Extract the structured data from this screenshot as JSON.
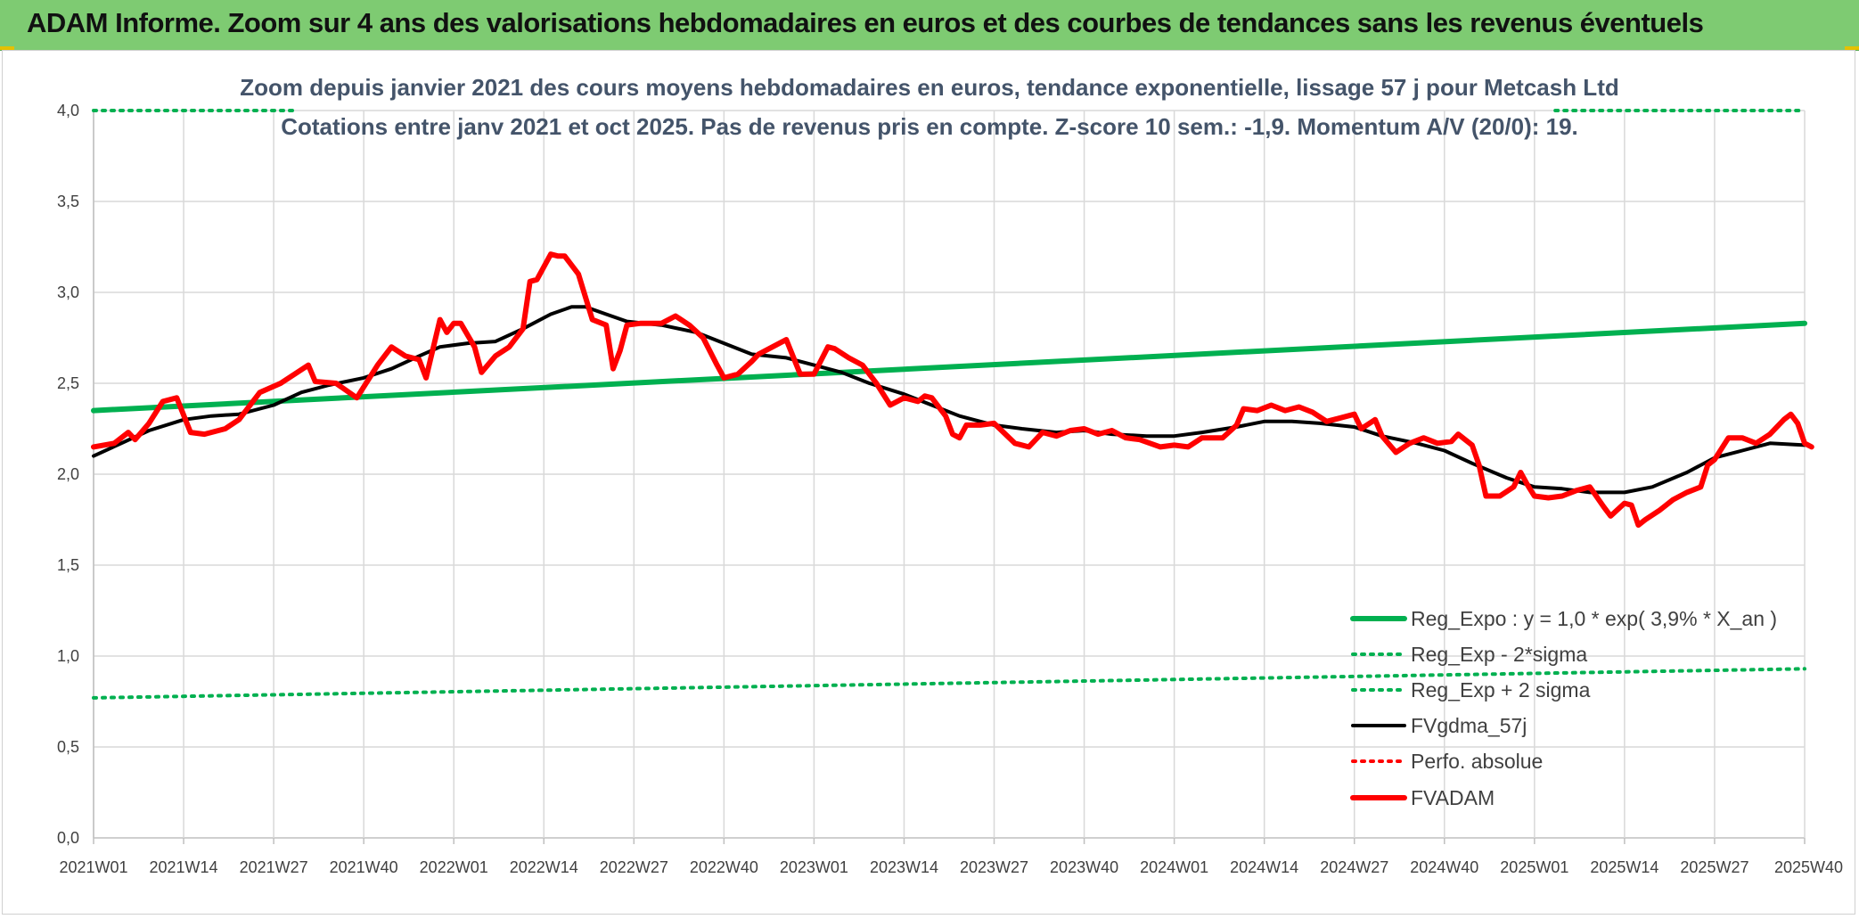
{
  "header": {
    "title": "ADAM Informe. Zoom sur 4 ans des valorisations hebdomadaires en euros et des courbes de tendances sans les revenus éventuels"
  },
  "colors": {
    "banner": "#7ecb72",
    "green": "#00b050",
    "red": "#ff0000",
    "black": "#000000",
    "grid": "#d9d9d9",
    "text": "#44546a"
  },
  "chart_data": {
    "type": "line",
    "title": "Zoom depuis janvier 2021 des cours moyens hebdomadaires en euros, tendance exponentielle, lissage 57 j pour Metcash Ltd",
    "subtitle": "Cotations entre janv 2021 et oct 2025. Pas de revenus pris en compte. Z-score 10 sem.: -1,9. Momentum A/V (20/0): 19.",
    "xlabel": "",
    "ylabel": "",
    "ylim": [
      0,
      4
    ],
    "y_ticks": [
      "0,0",
      "0,5",
      "1,0",
      "1,5",
      "2,0",
      "2,5",
      "3,0",
      "3,5",
      "4,0"
    ],
    "x_ticks": [
      "2021W01",
      "2021W14",
      "2021W27",
      "2021W40",
      "2022W01",
      "2022W14",
      "2022W27",
      "2022W40",
      "2023W01",
      "2023W14",
      "2023W27",
      "2023W40",
      "2024W01",
      "2024W14",
      "2024W27",
      "2024W40",
      "2025W01",
      "2025W14",
      "2025W27",
      "2025W40"
    ],
    "x_tick_weeks": [
      0,
      13,
      26,
      39,
      52,
      65,
      78,
      91,
      104,
      117,
      130,
      143,
      156,
      169,
      182,
      195,
      208,
      221,
      234,
      247
    ],
    "grid": true,
    "legend_position": "bottom-right",
    "series": [
      {
        "name": "Reg_Expo : y = 1,0 * exp( 3,9% *  X_an )",
        "style": "solid-thick",
        "color": "#00b050",
        "points": [
          [
            0,
            2.35
          ],
          [
            247,
            2.83
          ]
        ]
      },
      {
        "name": "Reg_Exp - 2*sigma",
        "style": "dotted",
        "color": "#00b050",
        "points": [
          [
            0,
            0.77
          ],
          [
            247,
            0.93
          ]
        ]
      },
      {
        "name": "Reg_Exp + 2 sigma",
        "style": "dotted",
        "color": "#00b050",
        "points": [
          [
            0,
            4.0
          ],
          [
            29,
            4.0
          ],
          [
            211,
            4.0
          ],
          [
            247,
            4.0
          ]
        ],
        "segments": [
          [
            0,
            29
          ],
          [
            211,
            247
          ]
        ]
      },
      {
        "name": "FVgdma_57j",
        "style": "solid",
        "color": "#000000",
        "points": [
          [
            0,
            2.1
          ],
          [
            4,
            2.17
          ],
          [
            8,
            2.24
          ],
          [
            13,
            2.3
          ],
          [
            17,
            2.32
          ],
          [
            21,
            2.33
          ],
          [
            26,
            2.38
          ],
          [
            30,
            2.45
          ],
          [
            34,
            2.49
          ],
          [
            39,
            2.53
          ],
          [
            43,
            2.58
          ],
          [
            47,
            2.65
          ],
          [
            50,
            2.7
          ],
          [
            54,
            2.72
          ],
          [
            58,
            2.73
          ],
          [
            62,
            2.8
          ],
          [
            66,
            2.88
          ],
          [
            69,
            2.92
          ],
          [
            71,
            2.92
          ],
          [
            74,
            2.88
          ],
          [
            77,
            2.84
          ],
          [
            82,
            2.82
          ],
          [
            87,
            2.78
          ],
          [
            91,
            2.72
          ],
          [
            95,
            2.66
          ],
          [
            100,
            2.64
          ],
          [
            104,
            2.6
          ],
          [
            108,
            2.56
          ],
          [
            112,
            2.5
          ],
          [
            117,
            2.44
          ],
          [
            121,
            2.38
          ],
          [
            125,
            2.32
          ],
          [
            130,
            2.27
          ],
          [
            134,
            2.25
          ],
          [
            139,
            2.23
          ],
          [
            143,
            2.24
          ],
          [
            147,
            2.22
          ],
          [
            152,
            2.21
          ],
          [
            156,
            2.21
          ],
          [
            160,
            2.23
          ],
          [
            165,
            2.26
          ],
          [
            169,
            2.29
          ],
          [
            173,
            2.29
          ],
          [
            177,
            2.28
          ],
          [
            182,
            2.26
          ],
          [
            186,
            2.21
          ],
          [
            191,
            2.17
          ],
          [
            195,
            2.13
          ],
          [
            199,
            2.06
          ],
          [
            204,
            1.98
          ],
          [
            208,
            1.93
          ],
          [
            212,
            1.92
          ],
          [
            216,
            1.9
          ],
          [
            221,
            1.9
          ],
          [
            225,
            1.93
          ],
          [
            230,
            2.01
          ],
          [
            234,
            2.09
          ],
          [
            238,
            2.13
          ],
          [
            242,
            2.17
          ],
          [
            247,
            2.16
          ]
        ]
      },
      {
        "name": "Perfo. absolue",
        "style": "dotted",
        "color": "#ff0000",
        "points": []
      },
      {
        "name": "FVADAM",
        "style": "solid-thick",
        "color": "#ff0000",
        "points": [
          [
            0,
            2.15
          ],
          [
            3,
            2.17
          ],
          [
            5,
            2.23
          ],
          [
            6,
            2.19
          ],
          [
            8,
            2.28
          ],
          [
            10,
            2.4
          ],
          [
            12,
            2.42
          ],
          [
            14,
            2.23
          ],
          [
            16,
            2.22
          ],
          [
            19,
            2.25
          ],
          [
            21,
            2.3
          ],
          [
            24,
            2.45
          ],
          [
            27,
            2.5
          ],
          [
            31,
            2.6
          ],
          [
            32,
            2.51
          ],
          [
            35,
            2.5
          ],
          [
            38,
            2.42
          ],
          [
            41,
            2.6
          ],
          [
            43,
            2.7
          ],
          [
            45,
            2.65
          ],
          [
            47,
            2.63
          ],
          [
            48,
            2.53
          ],
          [
            50,
            2.85
          ],
          [
            51,
            2.78
          ],
          [
            52,
            2.83
          ],
          [
            53,
            2.83
          ],
          [
            55,
            2.7
          ],
          [
            56,
            2.56
          ],
          [
            58,
            2.65
          ],
          [
            60,
            2.7
          ],
          [
            62,
            2.8
          ],
          [
            63,
            3.06
          ],
          [
            64,
            3.07
          ],
          [
            66,
            3.21
          ],
          [
            67,
            3.2
          ],
          [
            68,
            3.2
          ],
          [
            70,
            3.1
          ],
          [
            72,
            2.85
          ],
          [
            74,
            2.82
          ],
          [
            75,
            2.58
          ],
          [
            76,
            2.68
          ],
          [
            77,
            2.82
          ],
          [
            79,
            2.83
          ],
          [
            82,
            2.83
          ],
          [
            84,
            2.87
          ],
          [
            86,
            2.82
          ],
          [
            88,
            2.75
          ],
          [
            90,
            2.6
          ],
          [
            91,
            2.53
          ],
          [
            93,
            2.55
          ],
          [
            95,
            2.62
          ],
          [
            96,
            2.66
          ],
          [
            98,
            2.7
          ],
          [
            100,
            2.74
          ],
          [
            102,
            2.55
          ],
          [
            104,
            2.55
          ],
          [
            106,
            2.7
          ],
          [
            107,
            2.69
          ],
          [
            109,
            2.64
          ],
          [
            111,
            2.6
          ],
          [
            113,
            2.5
          ],
          [
            115,
            2.38
          ],
          [
            117,
            2.42
          ],
          [
            119,
            2.4
          ],
          [
            120,
            2.43
          ],
          [
            121,
            2.42
          ],
          [
            123,
            2.32
          ],
          [
            124,
            2.22
          ],
          [
            125,
            2.2
          ],
          [
            126,
            2.27
          ],
          [
            128,
            2.27
          ],
          [
            130,
            2.28
          ],
          [
            133,
            2.17
          ],
          [
            135,
            2.15
          ],
          [
            137,
            2.23
          ],
          [
            139,
            2.21
          ],
          [
            141,
            2.24
          ],
          [
            143,
            2.25
          ],
          [
            145,
            2.22
          ],
          [
            147,
            2.24
          ],
          [
            149,
            2.2
          ],
          [
            151,
            2.19
          ],
          [
            154,
            2.15
          ],
          [
            156,
            2.16
          ],
          [
            158,
            2.15
          ],
          [
            160,
            2.2
          ],
          [
            163,
            2.2
          ],
          [
            165,
            2.27
          ],
          [
            166,
            2.36
          ],
          [
            168,
            2.35
          ],
          [
            170,
            2.38
          ],
          [
            172,
            2.35
          ],
          [
            174,
            2.37
          ],
          [
            176,
            2.34
          ],
          [
            178,
            2.29
          ],
          [
            180,
            2.31
          ],
          [
            182,
            2.33
          ],
          [
            183,
            2.25
          ],
          [
            185,
            2.3
          ],
          [
            186,
            2.21
          ],
          [
            188,
            2.12
          ],
          [
            190,
            2.17
          ],
          [
            192,
            2.2
          ],
          [
            194,
            2.17
          ],
          [
            196,
            2.18
          ],
          [
            197,
            2.22
          ],
          [
            199,
            2.16
          ],
          [
            200,
            2.05
          ],
          [
            201,
            1.88
          ],
          [
            203,
            1.88
          ],
          [
            205,
            1.93
          ],
          [
            206,
            2.01
          ],
          [
            207,
            1.94
          ],
          [
            208,
            1.88
          ],
          [
            210,
            1.87
          ],
          [
            212,
            1.88
          ],
          [
            214,
            1.91
          ],
          [
            216,
            1.93
          ],
          [
            218,
            1.82
          ],
          [
            219,
            1.77
          ],
          [
            221,
            1.84
          ],
          [
            222,
            1.83
          ],
          [
            223,
            1.72
          ],
          [
            224,
            1.75
          ],
          [
            226,
            1.8
          ],
          [
            228,
            1.86
          ],
          [
            230,
            1.9
          ],
          [
            232,
            1.93
          ],
          [
            233,
            2.05
          ],
          [
            234,
            2.08
          ],
          [
            236,
            2.2
          ],
          [
            238,
            2.2
          ],
          [
            240,
            2.17
          ],
          [
            242,
            2.22
          ],
          [
            244,
            2.3
          ],
          [
            245,
            2.33
          ],
          [
            246,
            2.28
          ],
          [
            247,
            2.17
          ],
          [
            248,
            2.15
          ]
        ]
      }
    ]
  }
}
